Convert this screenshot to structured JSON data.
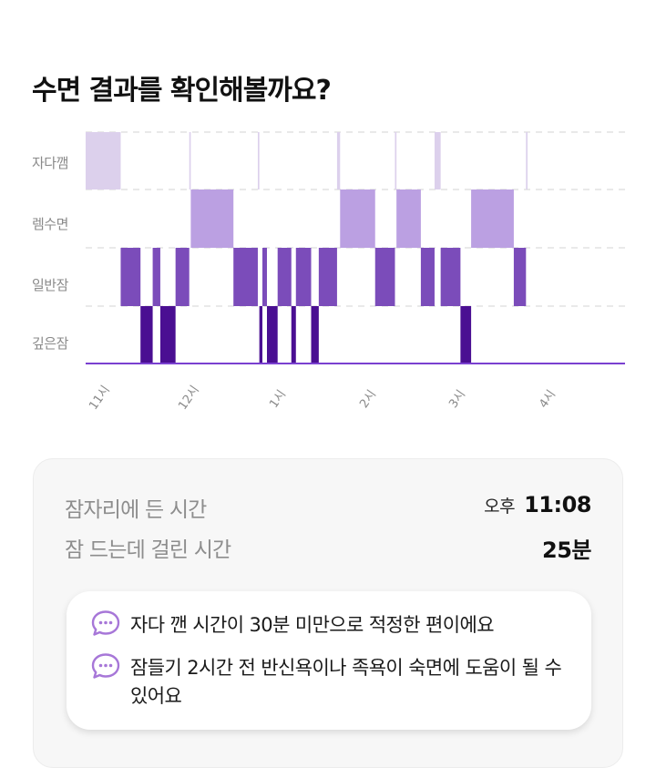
{
  "header": {
    "title": "수면 결과를 확인해볼까요?"
  },
  "chart_data": {
    "type": "hypnogram",
    "stages": [
      "자다깸",
      "렘수면",
      "일반잠",
      "깊은잠"
    ],
    "colors": {
      "자다깸": "#dcd0ec",
      "렘수면": "#bba0e2",
      "일반잠": "#7b4cba",
      "깊은잠": "#4a0f92",
      "baseline": "#7a40d0"
    },
    "x_range": [
      "22:58",
      "04:52"
    ],
    "x_ticks": [
      "11시",
      "12시",
      "1시",
      "2시",
      "3시",
      "4시"
    ],
    "segments": [
      {
        "stage": "자다깸",
        "start": "22:58",
        "end": "23:21"
      },
      {
        "stage": "일반잠",
        "start": "23:21",
        "end": "23:34"
      },
      {
        "stage": "깊은잠",
        "start": "23:34",
        "end": "23:42"
      },
      {
        "stage": "일반잠",
        "start": "23:42",
        "end": "23:47"
      },
      {
        "stage": "깊은잠",
        "start": "23:47",
        "end": "23:57"
      },
      {
        "stage": "일반잠",
        "start": "23:57",
        "end": "00:06"
      },
      {
        "stage": "자다깸",
        "start": "00:06",
        "end": "00:07"
      },
      {
        "stage": "렘수면",
        "start": "00:07",
        "end": "00:35"
      },
      {
        "stage": "일반잠",
        "start": "00:35",
        "end": "00:51"
      },
      {
        "stage": "자다깸",
        "start": "00:51",
        "end": "00:52"
      },
      {
        "stage": "깊은잠",
        "start": "00:52",
        "end": "00:54"
      },
      {
        "stage": "일반잠",
        "start": "00:54",
        "end": "00:57"
      },
      {
        "stage": "깊은잠",
        "start": "00:57",
        "end": "01:04"
      },
      {
        "stage": "일반잠",
        "start": "01:04",
        "end": "01:13"
      },
      {
        "stage": "깊은잠",
        "start": "01:13",
        "end": "01:16"
      },
      {
        "stage": "일반잠",
        "start": "01:16",
        "end": "01:26"
      },
      {
        "stage": "깊은잠",
        "start": "01:26",
        "end": "01:31"
      },
      {
        "stage": "일반잠",
        "start": "01:31",
        "end": "01:43"
      },
      {
        "stage": "자다깸",
        "start": "01:43",
        "end": "01:45"
      },
      {
        "stage": "렘수면",
        "start": "01:45",
        "end": "02:08"
      },
      {
        "stage": "일반잠",
        "start": "02:08",
        "end": "02:21"
      },
      {
        "stage": "자다깸",
        "start": "02:21",
        "end": "02:22"
      },
      {
        "stage": "렘수면",
        "start": "02:22",
        "end": "02:38"
      },
      {
        "stage": "일반잠",
        "start": "02:38",
        "end": "02:47"
      },
      {
        "stage": "자다깸",
        "start": "02:47",
        "end": "02:51"
      },
      {
        "stage": "일반잠",
        "start": "02:51",
        "end": "03:04"
      },
      {
        "stage": "깊은잠",
        "start": "03:04",
        "end": "03:11"
      },
      {
        "stage": "렘수면",
        "start": "03:11",
        "end": "03:39"
      },
      {
        "stage": "일반잠",
        "start": "03:39",
        "end": "03:47"
      },
      {
        "stage": "자다깸",
        "start": "03:47",
        "end": "03:48"
      }
    ]
  },
  "summary": {
    "bedtime_label": "잠자리에 든 시간",
    "bedtime_ampm": "오후",
    "bedtime_value": "11:08",
    "latency_label": "잠 드는데 걸린 시간",
    "latency_value": "25분"
  },
  "tips": [
    {
      "icon": "chat-bubble-icon",
      "text": "자다 깬 시간이 30분 미만으로 적정한 편이에요"
    },
    {
      "icon": "chat-bubble-icon",
      "text": "잠들기 2시간 전 반신욕이나 족욕이 숙면에 도움이 될 수 있어요"
    }
  ]
}
